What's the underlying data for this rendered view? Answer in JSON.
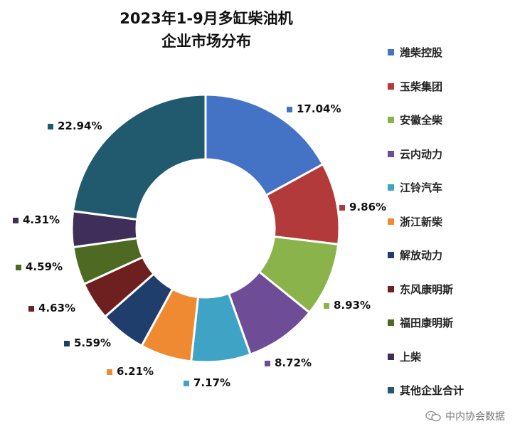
{
  "chart_data": {
    "type": "pie",
    "donut": true,
    "title": [
      "2023年1-9月多缸柴油机",
      "企业市场分布"
    ],
    "legend_position": "right",
    "slices": [
      {
        "name": "潍柴控股",
        "value": 17.04,
        "label": "17.04%",
        "color": "#4472C4"
      },
      {
        "name": "玉柴集团",
        "value": 9.86,
        "label": "9.86%",
        "color": "#B23A3A"
      },
      {
        "name": "安徽全柴",
        "value": 8.93,
        "label": "8.93%",
        "color": "#8AB44B"
      },
      {
        "name": "云内动力",
        "value": 8.72,
        "label": "8.72%",
        "color": "#6E4C96"
      },
      {
        "name": "江铃汽车",
        "value": 7.17,
        "label": "7.17%",
        "color": "#3EA3C4"
      },
      {
        "name": "浙江新柴",
        "value": 6.21,
        "label": "6.21%",
        "color": "#F08A32"
      },
      {
        "name": "解放动力",
        "value": 5.59,
        "label": "5.59%",
        "color": "#203E6B"
      },
      {
        "name": "东风康明斯",
        "value": 4.63,
        "label": "4.63%",
        "color": "#6E1F1F"
      },
      {
        "name": "福田康明斯",
        "value": 4.59,
        "label": "4.59%",
        "color": "#4E6A22"
      },
      {
        "name": "上柴",
        "value": 4.31,
        "label": "4.31%",
        "color": "#3F2D5A"
      },
      {
        "name": "其他企业合计",
        "value": 22.94,
        "label": "22.94%",
        "color": "#215A6E"
      }
    ]
  },
  "watermark": {
    "text": "中内协会数据",
    "icon": "wechat-icon"
  }
}
